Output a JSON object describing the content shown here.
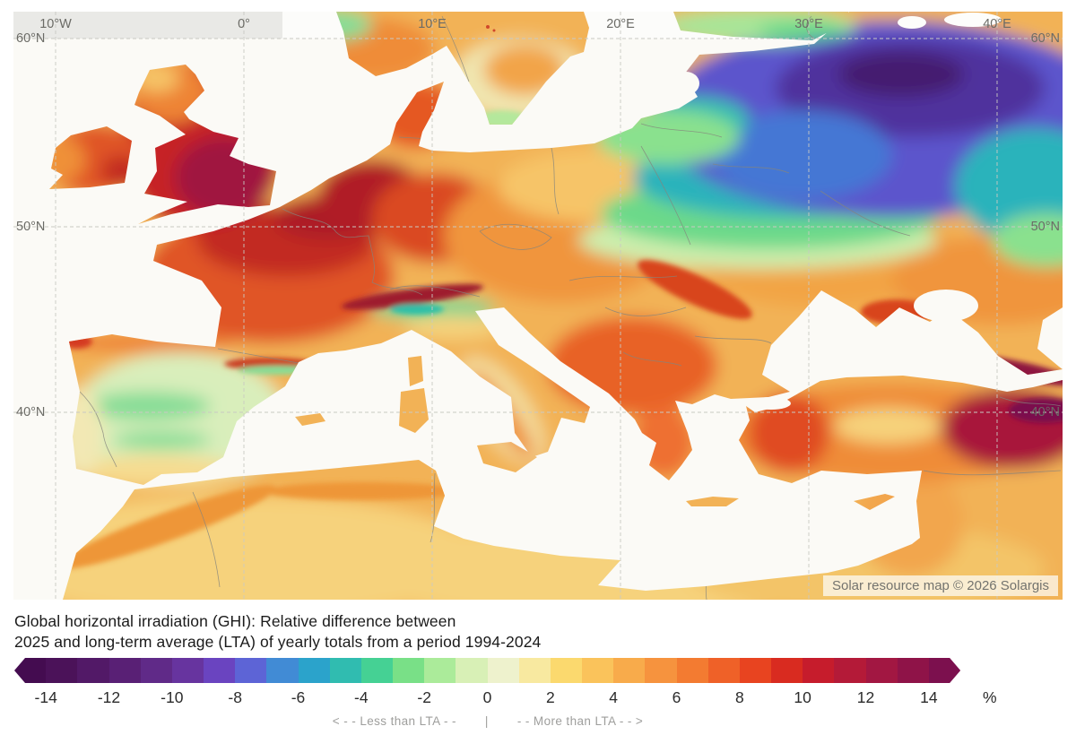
{
  "map": {
    "attribution": "Solar resource map © 2026 Solargis",
    "meridian_labels": [
      "10°W",
      "0°",
      "10°E",
      "20°E",
      "30°E",
      "40°E"
    ],
    "parallel_labels": [
      "60°N",
      "50°N",
      "40°N"
    ],
    "sea_color": "#fbfaf6",
    "no_data_color": "#e9e9e6",
    "graticule_color": "#c9c9c3",
    "country_border_color": "#85857d",
    "label_color": "#6b6b66"
  },
  "caption": {
    "line1": "Global horizontal irradiation (GHI): Relative difference between",
    "line2": "2025 and long-term average (LTA) of yearly totals from a period 1994-2024"
  },
  "colorbar": {
    "min": -15,
    "max": 15,
    "unit": "%",
    "ticks": [
      -14,
      -12,
      -10,
      -8,
      -6,
      -4,
      -2,
      0,
      2,
      4,
      6,
      8,
      10,
      12,
      14
    ],
    "segment_colors": [
      "#440c50",
      "#4b1259",
      "#521967",
      "#592075",
      "#602a88",
      "#67349f",
      "#6a44c0",
      "#5d64d6",
      "#418bd5",
      "#2ba3cb",
      "#30bcb0",
      "#45d194",
      "#79e087",
      "#abeb9a",
      "#d8f0b6",
      "#eef2cd",
      "#f8e9a0",
      "#fbd96e",
      "#fac35b",
      "#f8ab4b",
      "#f6933e",
      "#f37b31",
      "#ef6128",
      "#e84420",
      "#d92b20",
      "#c61c2c",
      "#b41a38",
      "#a21742",
      "#8f1348",
      "#7c104e"
    ],
    "less_label": "< - -  Less than LTA  - -",
    "divider": "|",
    "more_label": "- -  More than LTA  - - >"
  }
}
